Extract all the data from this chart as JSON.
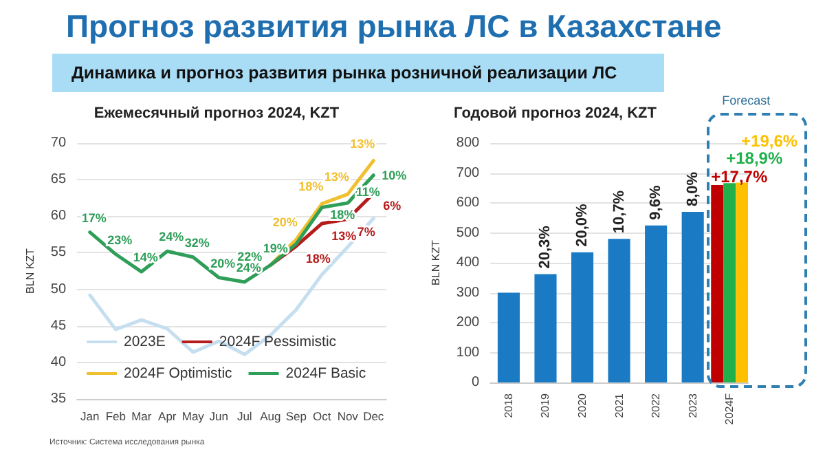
{
  "chart_data": [
    {
      "type": "line",
      "title": "Ежемесячный прогноз 2024, KZT",
      "ylabel": "BLN KZT",
      "annotations": [
        "Прогноз развития рынка ЛС в Казахстане",
        "Динамика и прогноз развития рынка розничной реализации ЛС",
        {
          "text": "17%",
          "x": "Jan",
          "y": 57.8
        },
        {
          "text": "23%",
          "x": "Feb",
          "y": 54.8
        },
        {
          "text": "14%",
          "x": "Mar",
          "y": 52.4
        },
        {
          "text": "24%",
          "x": "Apr",
          "y": 55.2
        },
        {
          "text": "32%",
          "x": "May",
          "y": 54.4
        },
        {
          "text": "20%",
          "x": "Jun",
          "y": 51.6
        },
        {
          "text": "24%",
          "x": "Jul",
          "y": 51.0
        },
        {
          "text": "22%",
          "x": "Aug",
          "y": 53.3
        },
        {
          "text": "19%",
          "x": "Sep",
          "y": 56.2
        },
        {
          "text": "18%",
          "x": "Oct",
          "y": 61.2
        },
        {
          "text": "11%",
          "x": "Nov",
          "y": 61.8
        },
        {
          "text": "10%",
          "x": "Dec",
          "y": 65.6
        },
        {
          "text": "18%",
          "x": "Sep",
          "y": 55.9
        },
        {
          "text": "13%",
          "x": "Oct",
          "y": 59.0
        },
        {
          "text": "7%",
          "x": "Nov",
          "y": 59.6
        },
        {
          "text": "6%",
          "x": "Dec",
          "y": 63.1
        },
        {
          "text": "20%",
          "x": "Sep",
          "y": 56.8
        },
        {
          "text": "18%",
          "x": "Oct",
          "y": 61.7
        },
        {
          "text": "13%",
          "x": "Nov",
          "y": 63.0
        },
        {
          "text": "13%",
          "x": "Dec",
          "y": 67.6
        }
      ],
      "categories": [
        "Jan",
        "Feb",
        "Mar",
        "Apr",
        "May",
        "Jun",
        "Jul",
        "Aug",
        "Sep",
        "Oct",
        "Nov",
        "Dec"
      ],
      "series": [
        {
          "name": "2023E",
          "color": "#c5dff0",
          "values": [
            49.2,
            44.5,
            45.8,
            44.6,
            41.4,
            42.9,
            41.1,
            43.7,
            47.2,
            52.0,
            55.8,
            59.7
          ]
        },
        {
          "name": "2024F Pessimistic",
          "color": "#b51c1c",
          "values": [
            null,
            null,
            null,
            null,
            null,
            null,
            null,
            53.3,
            55.9,
            59.0,
            59.6,
            63.1
          ]
        },
        {
          "name": "2024F Optimistic",
          "color": "#f0c030",
          "values": [
            null,
            null,
            null,
            null,
            null,
            null,
            null,
            53.3,
            56.8,
            61.7,
            63.0,
            67.6
          ]
        },
        {
          "name": "2024F Basic",
          "color": "#2e9e58",
          "values": [
            57.8,
            54.8,
            52.4,
            55.2,
            54.4,
            51.6,
            51.0,
            53.3,
            56.2,
            61.2,
            61.8,
            65.6
          ]
        }
      ],
      "ylim": [
        35,
        70
      ],
      "yticks": [
        35,
        40,
        45,
        50,
        55,
        60,
        65,
        70
      ],
      "grid": "y",
      "legend": "bottom",
      "marker": "none"
    },
    {
      "type": "bar",
      "title": "Годовой прогноз 2024, KZT",
      "ylabel": "BLN KZT",
      "annotations": [
        "Forecast",
        "Источник: Система исследования рынка",
        {
          "text": "20,3%",
          "x": "2019",
          "y": 362
        },
        {
          "text": "20,0%",
          "x": "2020",
          "y": 435
        },
        {
          "text": "10,7%",
          "x": "2021",
          "y": 480
        },
        {
          "text": "9,6%",
          "x": "2022",
          "y": 525
        },
        {
          "text": "8,0%",
          "x": "2023",
          "y": 570
        },
        {
          "text": "+17,7%",
          "x": "2024F",
          "y": 660
        },
        {
          "text": "+18,9%",
          "x": "2024F",
          "y": 666
        },
        {
          "text": "+19,6%",
          "x": "2024F",
          "y": 668
        }
      ],
      "categories": [
        "2018",
        "2019",
        "2020",
        "2021",
        "2022",
        "2023",
        "2024F"
      ],
      "series": [
        {
          "color": "#1a7bc4",
          "values": [
            300,
            362,
            435,
            480,
            525,
            570,
            null
          ]
        },
        {
          "color": "#c00000",
          "values": [
            null,
            null,
            null,
            null,
            null,
            null,
            660
          ]
        },
        {
          "color": "#22b04b",
          "values": [
            null,
            null,
            null,
            null,
            null,
            null,
            666
          ]
        },
        {
          "color": "#ffc000",
          "values": [
            null,
            null,
            null,
            null,
            null,
            null,
            668
          ]
        }
      ],
      "ylim": [
        0,
        800
      ],
      "yticks": [
        0,
        100,
        200,
        300,
        400,
        500,
        600,
        700,
        800
      ],
      "grid": "y",
      "legend": false
    }
  ]
}
